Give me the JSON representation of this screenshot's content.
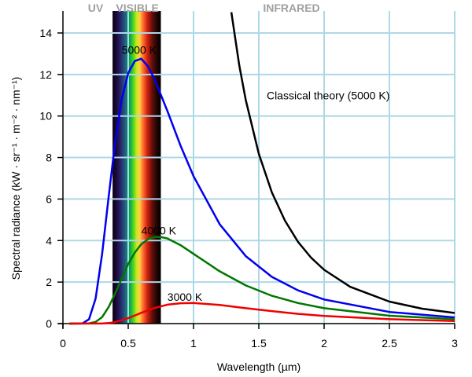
{
  "chart_data": {
    "type": "line",
    "title": "",
    "xlabel": "Wavelength (µm)",
    "ylabel": "Spectral radiance (kW · sr⁻¹ · m⁻² · nm⁻¹)",
    "xlim": [
      0,
      3
    ],
    "ylim": [
      0,
      15
    ],
    "xticks": [
      "0",
      "0.5",
      "1",
      "1.5",
      "2",
      "2.5",
      "3"
    ],
    "yticks": [
      "0",
      "2",
      "4",
      "6",
      "8",
      "10",
      "12",
      "14"
    ],
    "grid": true,
    "bands": [
      {
        "label": "UV",
        "x": 0.25
      },
      {
        "label": "VISIBLE",
        "x": 0.57
      },
      {
        "label": "INFRARED",
        "x": 1.75
      }
    ],
    "visible_range": [
      0.38,
      0.75
    ],
    "series": [
      {
        "name": "5000 K",
        "color": "#0000ee",
        "x": [
          0.05,
          0.15,
          0.2,
          0.25,
          0.3,
          0.35,
          0.4,
          0.45,
          0.5,
          0.55,
          0.6,
          0.65,
          0.7,
          0.8,
          0.9,
          1.0,
          1.2,
          1.4,
          1.6,
          1.8,
          2.0,
          2.5,
          3.0
        ],
        "y": [
          0,
          0.01,
          0.21,
          1.2,
          3.35,
          6.1,
          8.75,
          10.8,
          12.07,
          12.65,
          12.76,
          12.4,
          11.8,
          10.24,
          8.58,
          7.1,
          4.79,
          3.25,
          2.25,
          1.6,
          1.16,
          0.56,
          0.3
        ]
      },
      {
        "name": "4000 K",
        "color": "#007700",
        "x": [
          0.05,
          0.2,
          0.25,
          0.3,
          0.35,
          0.4,
          0.45,
          0.5,
          0.55,
          0.6,
          0.65,
          0.7,
          0.75,
          0.8,
          0.9,
          1.0,
          1.2,
          1.4,
          1.6,
          1.8,
          2.0,
          2.5,
          3.0
        ],
        "y": [
          0,
          0.01,
          0.08,
          0.31,
          0.8,
          1.45,
          2.17,
          2.87,
          3.42,
          3.82,
          4.06,
          4.17,
          4.17,
          4.1,
          3.78,
          3.36,
          2.52,
          1.84,
          1.34,
          0.99,
          0.74,
          0.38,
          0.21
        ]
      },
      {
        "name": "3000 K",
        "color": "#ee0000",
        "x": [
          0.05,
          0.3,
          0.35,
          0.4,
          0.5,
          0.6,
          0.7,
          0.8,
          0.9,
          1.0,
          1.2,
          1.4,
          1.6,
          1.8,
          2.0,
          2.5,
          3.0
        ],
        "y": [
          0,
          0.005,
          0.025,
          0.073,
          0.26,
          0.52,
          0.75,
          0.91,
          0.98,
          0.99,
          0.9,
          0.74,
          0.6,
          0.47,
          0.37,
          0.21,
          0.12
        ]
      },
      {
        "name": "Classical theory (5000 K)",
        "color": "#000000",
        "x": [
          1.29,
          1.35,
          1.4,
          1.5,
          1.6,
          1.7,
          1.8,
          1.9,
          2.0,
          2.2,
          2.5,
          2.75,
          3.0
        ],
        "y": [
          15.0,
          12.45,
          10.77,
          8.18,
          6.32,
          4.96,
          3.94,
          3.18,
          2.59,
          1.77,
          1.06,
          0.72,
          0.51
        ]
      }
    ],
    "annotations": [
      {
        "text": "5000 K",
        "x": 0.45,
        "y": 13.0
      },
      {
        "text": "4000 K",
        "x": 0.6,
        "y": 4.3
      },
      {
        "text": "3000 K",
        "x": 0.8,
        "y": 1.1
      },
      {
        "text": "Classical theory (5000 K)",
        "x": 1.56,
        "y": 10.8
      }
    ]
  }
}
